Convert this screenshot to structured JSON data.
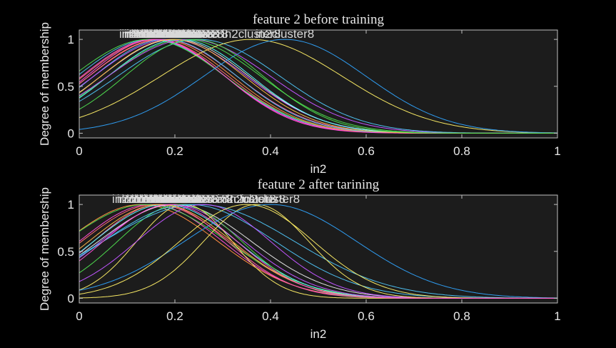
{
  "chart_data": [
    {
      "type": "line",
      "title": "feature 2 before training",
      "xlabel": "in2",
      "ylabel": "Degree of membership",
      "xlim": [
        0,
        1
      ],
      "ylim": [
        -0.05,
        1.1
      ],
      "xticks": [
        "0",
        "0.2",
        "0.4",
        "0.6",
        "0.8",
        "1"
      ],
      "yticks": [
        "0",
        "0.5",
        "1"
      ],
      "grid": false,
      "curve_type": "gaussian",
      "visible_label": "in2cluster8",
      "series": [
        {
          "center": 0.15,
          "sigma": 0.155,
          "color": "#4dbeee"
        },
        {
          "center": 0.155,
          "sigma": 0.15,
          "color": "#ff4fd8"
        },
        {
          "center": 0.16,
          "sigma": 0.152,
          "color": "#ff6f6f"
        },
        {
          "center": 0.145,
          "sigma": 0.16,
          "color": "#4dd84d"
        },
        {
          "center": 0.17,
          "sigma": 0.15,
          "color": "#ff8c42"
        },
        {
          "center": 0.175,
          "sigma": 0.155,
          "color": "#ff5fa0"
        },
        {
          "center": 0.18,
          "sigma": 0.15,
          "color": "#4dbeee"
        },
        {
          "center": 0.19,
          "sigma": 0.16,
          "color": "#c055ff"
        },
        {
          "center": 0.2,
          "sigma": 0.155,
          "color": "#e0e0e0"
        },
        {
          "center": 0.21,
          "sigma": 0.15,
          "color": "#55ffff"
        },
        {
          "center": 0.22,
          "sigma": 0.16,
          "color": "#4dd84d"
        },
        {
          "center": 0.16,
          "sigma": 0.145,
          "color": "#ff4fd8"
        },
        {
          "center": 0.23,
          "sigma": 0.17,
          "color": "#c055ff"
        },
        {
          "center": 0.25,
          "sigma": 0.17,
          "color": "#4dbeee"
        },
        {
          "center": 0.36,
          "sigma": 0.19,
          "color": "#f5e663"
        },
        {
          "center": 0.43,
          "sigma": 0.17,
          "color": "#2f9cf0"
        },
        {
          "center": 0.195,
          "sigma": 0.15,
          "color": "#ffb347"
        },
        {
          "center": 0.24,
          "sigma": 0.145,
          "color": "#4dd84d"
        }
      ]
    },
    {
      "type": "line",
      "title": "feature 2 after tarining",
      "xlabel": "in2",
      "ylabel": "Degree of membership",
      "xlim": [
        0,
        1
      ],
      "ylim": [
        -0.05,
        1.1
      ],
      "xticks": [
        "0",
        "0.2",
        "0.4",
        "0.6",
        "0.8",
        "1"
      ],
      "yticks": [
        "0",
        "0.5",
        "1"
      ],
      "grid": false,
      "curve_type": "gaussian",
      "visible_label": "in2cluster8",
      "series": [
        {
          "center": 0.13,
          "sigma": 0.16,
          "color": "#ff8c42"
        },
        {
          "center": 0.15,
          "sigma": 0.15,
          "color": "#ff4fd8"
        },
        {
          "center": 0.16,
          "sigma": 0.155,
          "color": "#ff6f6f"
        },
        {
          "center": 0.14,
          "sigma": 0.17,
          "color": "#4dd84d"
        },
        {
          "center": 0.17,
          "sigma": 0.14,
          "color": "#ff5fa0"
        },
        {
          "center": 0.18,
          "sigma": 0.15,
          "color": "#55ffff"
        },
        {
          "center": 0.195,
          "sigma": 0.15,
          "color": "#c055ff"
        },
        {
          "center": 0.2,
          "sigma": 0.16,
          "color": "#e0e0e0"
        },
        {
          "center": 0.21,
          "sigma": 0.13,
          "color": "#4dd84d"
        },
        {
          "center": 0.22,
          "sigma": 0.1,
          "color": "#f5e663"
        },
        {
          "center": 0.23,
          "sigma": 0.18,
          "color": "#4dbeee"
        },
        {
          "center": 0.25,
          "sigma": 0.2,
          "color": "#4dbeee"
        },
        {
          "center": 0.26,
          "sigma": 0.14,
          "color": "#c055ff"
        },
        {
          "center": 0.37,
          "sigma": 0.11,
          "color": "#f5e663"
        },
        {
          "center": 0.4,
          "sigma": 0.18,
          "color": "#2f9cf0"
        },
        {
          "center": 0.35,
          "sigma": 0.14,
          "color": "#f5e663"
        },
        {
          "center": 0.17,
          "sigma": 0.15,
          "color": "#ffb347"
        },
        {
          "center": 0.19,
          "sigma": 0.14,
          "color": "#ff4fd8"
        }
      ]
    }
  ]
}
